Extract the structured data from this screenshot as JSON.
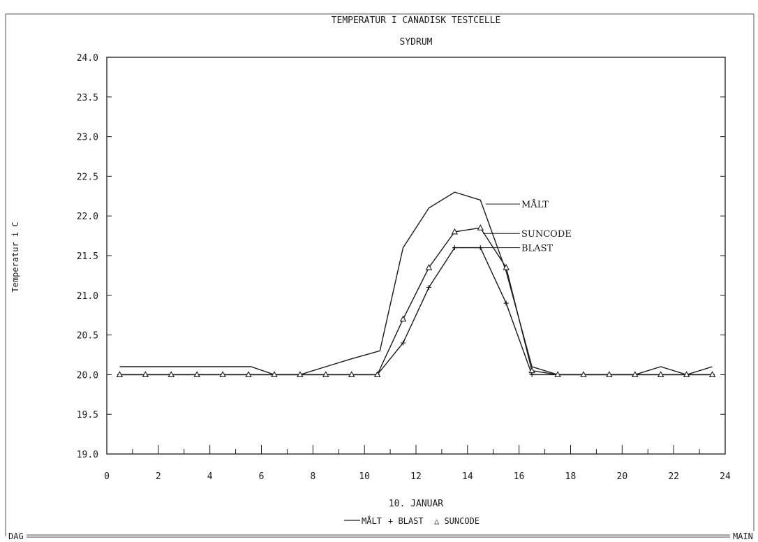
{
  "chart_data": {
    "type": "line",
    "title": "TEMPERATUR I CANADISK TESTCELLE",
    "subtitle": "SYDRUM",
    "xlabel": "10. JANUAR",
    "ylabel": "Temperatur i C",
    "xlim": [
      0,
      24
    ],
    "ylim": [
      19.0,
      24.0
    ],
    "x_ticks": [
      "0",
      "2",
      "4",
      "6",
      "8",
      "10",
      "12",
      "14",
      "16",
      "18",
      "20",
      "22",
      "24"
    ],
    "y_ticks": [
      "19.0",
      "19.5",
      "20.0",
      "20.5",
      "21.0",
      "21.5",
      "22.0",
      "22.5",
      "23.0",
      "23.5",
      "24.0"
    ],
    "grid": false,
    "legend": "bottom",
    "series": [
      {
        "name": "MÅLT",
        "legend_label": "MÅLT",
        "marker": "none",
        "x": [
          0.5,
          5.6,
          6.5,
          7.5,
          8.5,
          9.5,
          10.6,
          11.5,
          12.5,
          13.5,
          14.5,
          15.5,
          16.5,
          17.5,
          18.5,
          19.5,
          20.5,
          21.5,
          22.5,
          23.5
        ],
        "values": [
          20.1,
          20.1,
          20.0,
          20.0,
          20.1,
          20.2,
          20.3,
          21.6,
          22.1,
          22.3,
          22.2,
          21.3,
          20.1,
          20.0,
          20.0,
          20.0,
          20.0,
          20.1,
          20.0,
          20.1
        ]
      },
      {
        "name": "BLAST",
        "legend_label": "+ BLAST",
        "marker": "plus",
        "x": [
          0.5,
          1.5,
          2.5,
          3.5,
          4.5,
          5.5,
          6.5,
          7.5,
          8.5,
          9.5,
          10.5,
          11.5,
          12.5,
          13.5,
          14.5,
          15.5,
          16.5,
          17.5,
          18.5,
          19.5,
          20.5,
          21.5,
          22.5,
          23.5
        ],
        "values": [
          20.0,
          20.0,
          20.0,
          20.0,
          20.0,
          20.0,
          20.0,
          20.0,
          20.0,
          20.0,
          20.0,
          20.4,
          21.1,
          21.6,
          21.6,
          20.9,
          20.0,
          20.0,
          20.0,
          20.0,
          20.0,
          20.0,
          20.0,
          20.0
        ]
      },
      {
        "name": "SUNCODE",
        "legend_label": "△ SUNCODE",
        "marker": "triangle",
        "x": [
          0.5,
          1.5,
          2.5,
          3.5,
          4.5,
          5.5,
          6.5,
          7.5,
          8.5,
          9.5,
          10.5,
          11.5,
          12.5,
          13.5,
          14.5,
          15.5,
          16.5,
          17.5,
          18.5,
          19.5,
          20.5,
          21.5,
          22.5,
          23.5
        ],
        "values": [
          20.0,
          20.0,
          20.0,
          20.0,
          20.0,
          20.0,
          20.0,
          20.0,
          20.0,
          20.0,
          20.0,
          20.7,
          21.35,
          21.8,
          21.85,
          21.35,
          20.05,
          20.0,
          20.0,
          20.0,
          20.0,
          20.0,
          20.0,
          20.0
        ]
      }
    ],
    "annotations": [
      "MÅLT",
      "SUNCODE",
      "BLAST"
    ]
  },
  "footer": {
    "left_label": "DAG",
    "right_label": "MAIN"
  }
}
